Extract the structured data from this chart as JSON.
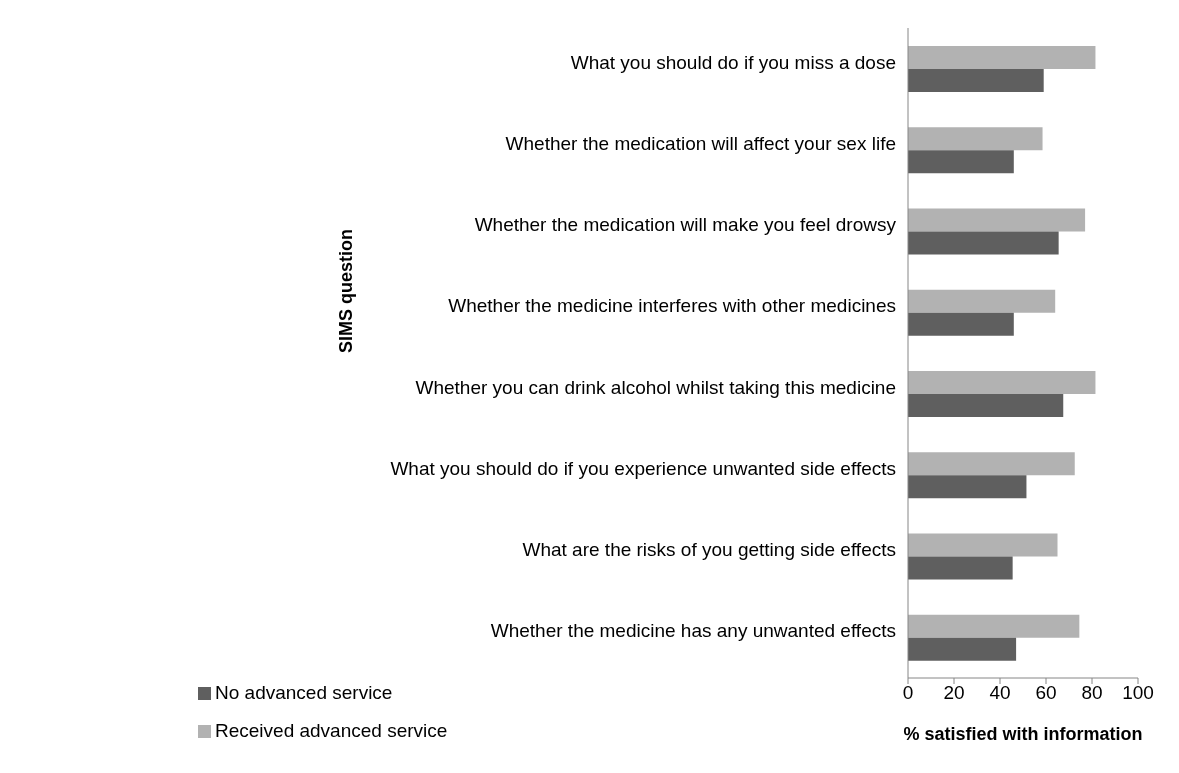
{
  "chart_data": {
    "type": "bar",
    "orientation": "horizontal",
    "ylabel": "SIMS question",
    "xlabel": "% satisfied with information",
    "categories": [
      "What you should do if you miss a dose",
      "Whether the medication will affect your sex life",
      "Whether the medication will make you feel drowsy",
      "Whether the medicine interferes with other medicines",
      "Whether you can drink alcohol whilst taking this medicine",
      "What you should do if you experience unwanted side effects",
      "What are the risks of you getting side effects",
      "Whether the medicine has any unwanted effects"
    ],
    "series": [
      {
        "name": "Received advanced service",
        "color": "#b2b2b2",
        "values": [
          81.5,
          58.5,
          77,
          64,
          81.5,
          72.5,
          65,
          74.5
        ]
      },
      {
        "name": "No advanced service",
        "color": "#5f5f5f",
        "values": [
          59,
          46,
          65.5,
          46,
          67.5,
          51.5,
          45.5,
          47
        ]
      }
    ],
    "xlim": [
      0,
      100
    ],
    "xticks": [
      0,
      20,
      40,
      60,
      80,
      100
    ],
    "legend": "bottom left"
  }
}
